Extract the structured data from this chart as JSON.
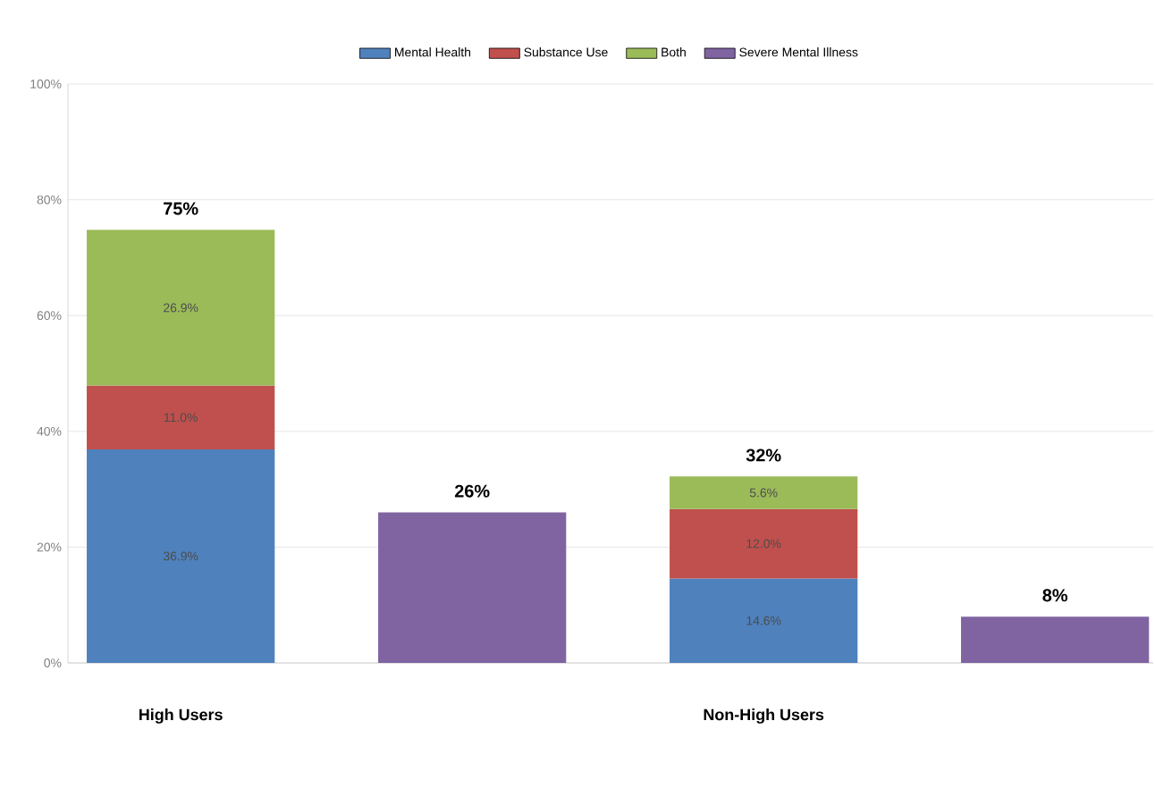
{
  "chart_data": {
    "type": "bar",
    "stacked": true,
    "categories": [
      "High Users",
      null,
      "Non-High Users",
      null
    ],
    "series": [
      {
        "name": "Mental Health",
        "color": "#4f81bd",
        "values": [
          36.9,
          null,
          14.6,
          null
        ],
        "value_labels": [
          "36.9%",
          null,
          "14.6%",
          null
        ]
      },
      {
        "name": "Substance Use",
        "color": "#c0504d",
        "values": [
          11.0,
          null,
          12.0,
          null
        ],
        "value_labels": [
          "11.0%",
          null,
          "12.0%",
          null
        ]
      },
      {
        "name": "Both",
        "color": "#9bbb59",
        "values": [
          26.9,
          null,
          5.6,
          null
        ],
        "value_labels": [
          "26.9%",
          null,
          "5.6%",
          null
        ]
      },
      {
        "name": "Severe Mental Illness",
        "color": "#8064a2",
        "values": [
          null,
          26,
          null,
          8
        ],
        "value_labels": [
          null,
          "26%",
          null,
          "8%"
        ]
      }
    ],
    "totals": [
      "75%",
      null,
      "32%",
      null
    ],
    "ylim": [
      0,
      100
    ],
    "yticks": [
      {
        "value": 0,
        "label": "0%"
      },
      {
        "value": 20,
        "label": "20%"
      },
      {
        "value": 40,
        "label": "40%"
      },
      {
        "value": 60,
        "label": "60%"
      },
      {
        "value": 80,
        "label": "80%"
      },
      {
        "value": 100,
        "label": "100%"
      }
    ],
    "grid": "y",
    "legend": "top"
  }
}
